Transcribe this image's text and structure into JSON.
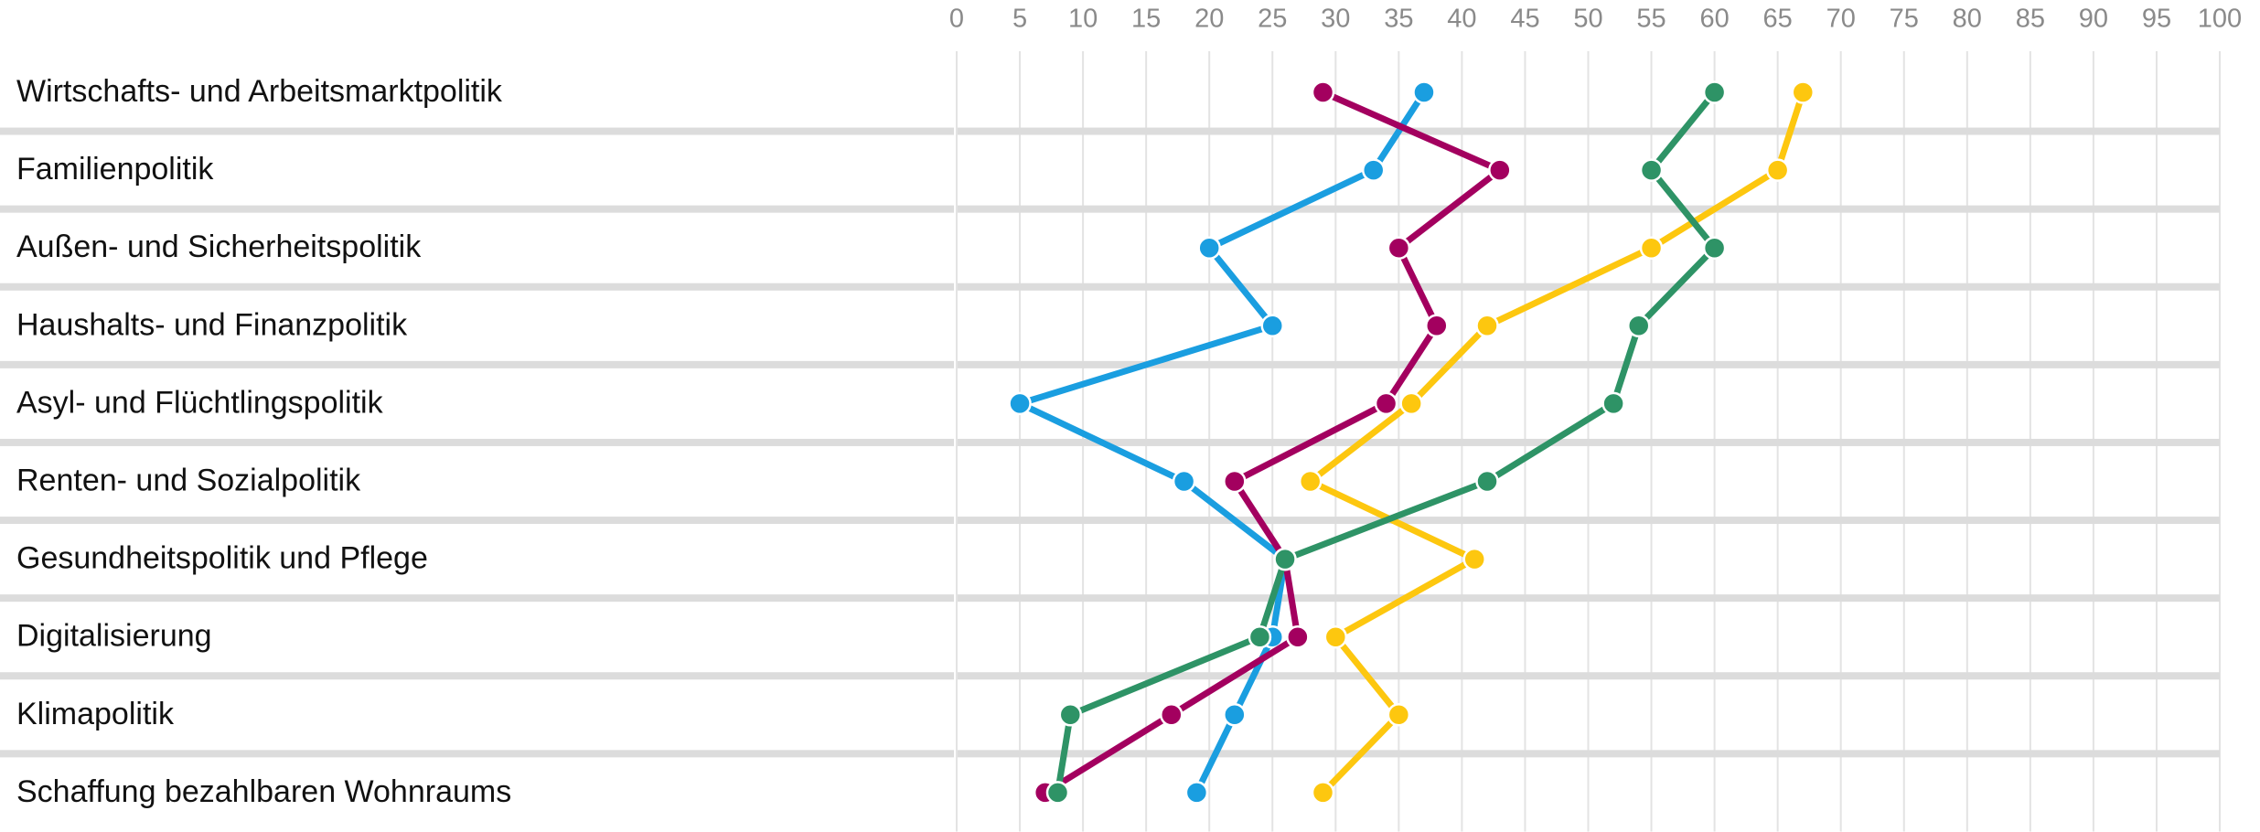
{
  "chart_data": {
    "type": "line",
    "categories": [
      "Wirtschafts- und Arbeitsmarktpolitik",
      "Familienpolitik",
      "Außen- und Sicherheitspolitik",
      "Haushalts- und Finanzpolitik",
      "Asyl- und Flüchtlingspolitik",
      "Renten- und Sozialpolitik",
      "Gesundheitspolitik und Pflege",
      "Digitalisierung",
      "Klimapolitik",
      "Schaffung bezahlbaren Wohnraums"
    ],
    "series": [
      {
        "color": "#1a9ee0",
        "values": [
          37,
          33,
          20,
          25,
          5,
          18,
          26,
          25,
          22,
          19
        ]
      },
      {
        "color": "#a3005f",
        "values": [
          29,
          43,
          35,
          38,
          34,
          22,
          26,
          27,
          17,
          7
        ]
      },
      {
        "color": "#fdc70f",
        "values": [
          67,
          65,
          55,
          42,
          36,
          28,
          41,
          30,
          35,
          29
        ]
      },
      {
        "color": "#2e9366",
        "values": [
          60,
          55,
          60,
          54,
          52,
          42,
          26,
          24,
          9,
          8
        ]
      }
    ],
    "xlim": [
      0,
      100
    ],
    "xticks": [
      0,
      5,
      10,
      15,
      20,
      25,
      30,
      35,
      40,
      45,
      50,
      55,
      60,
      65,
      70,
      75,
      80,
      85,
      90,
      95,
      100
    ],
    "grid": true
  }
}
